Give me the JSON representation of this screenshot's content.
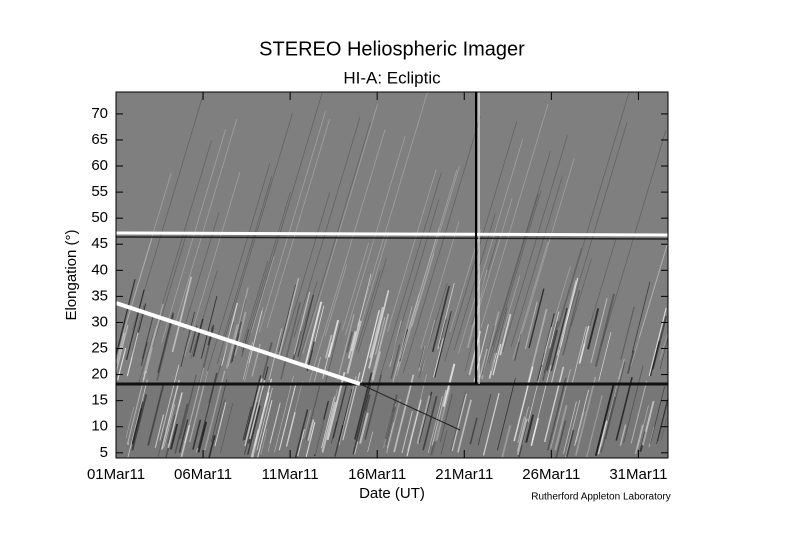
{
  "chart_data": {
    "type": "jmap",
    "title": "STEREO Heliospheric Imager",
    "subtitle": "HI-A: Ecliptic",
    "x_label": "Date (UT)",
    "y_label": "Elongation (°)",
    "credit": "Rutherford Appleton Laboratory",
    "xlim": [
      1,
      32.7
    ],
    "xticks": [
      {
        "value": 1,
        "label": "01Mar11"
      },
      {
        "value": 6,
        "label": "06Mar11"
      },
      {
        "value": 11,
        "label": "11Mar11"
      },
      {
        "value": 16,
        "label": "16Mar11"
      },
      {
        "value": 21,
        "label": "21Mar11"
      },
      {
        "value": 26,
        "label": "26Mar11"
      },
      {
        "value": 31,
        "label": "31Mar11"
      }
    ],
    "ylim": [
      4,
      74.2
    ],
    "yticks": [
      5,
      10,
      15,
      20,
      25,
      30,
      35,
      40,
      45,
      50,
      55,
      60,
      65,
      70
    ],
    "grid": false
  }
}
